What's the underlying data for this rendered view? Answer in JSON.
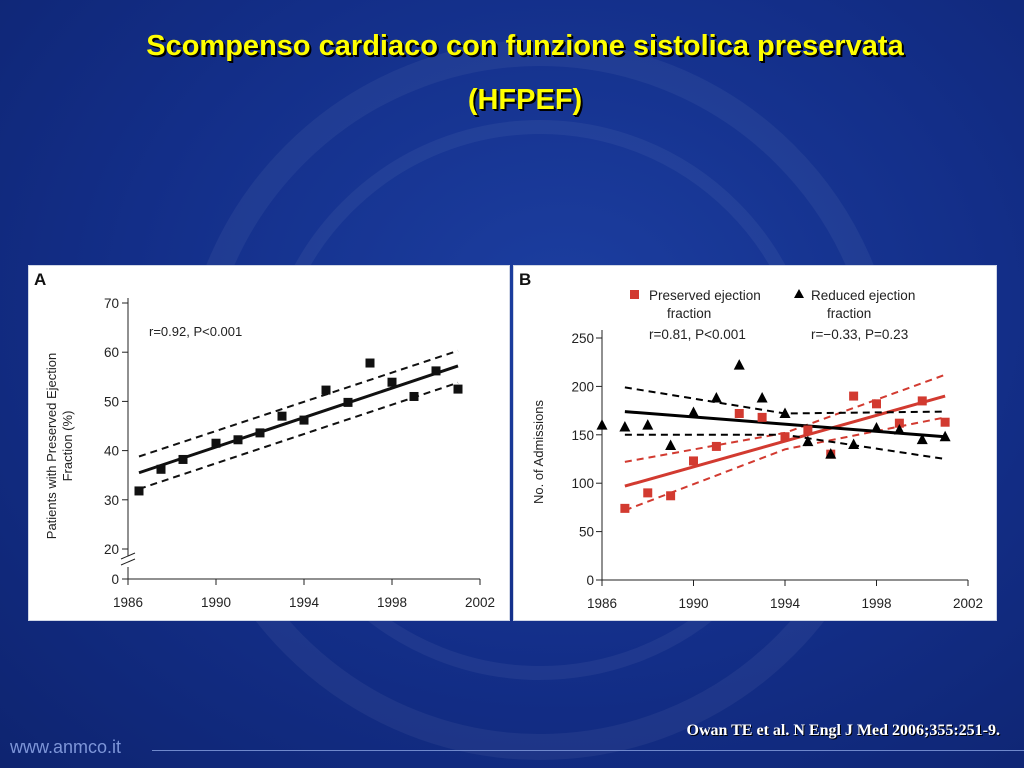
{
  "slide": {
    "title_line1": "Scompenso cardiaco con funzione sistolica preservata",
    "title_line2": "(HFPEF)",
    "citation": "Owan TE et al. N Engl J Med 2006;355:251-9.",
    "footer": "www.anmco.it"
  },
  "chart_data": [
    {
      "panel": "A",
      "type": "scatter",
      "ylabel_line1": "Patients with Preserved Ejection",
      "ylabel_line2": "Fraction (%)",
      "xlabel": "",
      "xlim": [
        1986,
        2002
      ],
      "x_ticks": [
        1986,
        1990,
        1994,
        1998,
        2002
      ],
      "y_ticks": [
        0,
        20,
        30,
        40,
        50,
        60,
        70
      ],
      "y_break": true,
      "annotation": "r=0.92, P<0.001",
      "points": [
        {
          "x": 1986.5,
          "y": 31.8
        },
        {
          "x": 1987.5,
          "y": 36.2
        },
        {
          "x": 1988.5,
          "y": 38.2
        },
        {
          "x": 1990.0,
          "y": 41.5
        },
        {
          "x": 1991.0,
          "y": 42.2
        },
        {
          "x": 1992.0,
          "y": 43.6
        },
        {
          "x": 1993.0,
          "y": 47.0
        },
        {
          "x": 1994.0,
          "y": 46.2
        },
        {
          "x": 1995.0,
          "y": 52.3
        },
        {
          "x": 1996.0,
          "y": 49.8
        },
        {
          "x": 1997.0,
          "y": 57.8
        },
        {
          "x": 1998.0,
          "y": 53.9
        },
        {
          "x": 1999.0,
          "y": 51.0
        },
        {
          "x": 2000.0,
          "y": 56.2
        },
        {
          "x": 2001.0,
          "y": 52.5
        }
      ],
      "fit": {
        "x": [
          1986.5,
          2001.0
        ],
        "y": [
          35.5,
          57.2
        ]
      },
      "ci_upper": {
        "x": [
          1986.5,
          2001.0
        ],
        "y": [
          38.8,
          60.3
        ]
      },
      "ci_lower": {
        "x": [
          1986.5,
          2001.0
        ],
        "y": [
          32.2,
          53.8
        ]
      }
    },
    {
      "panel": "B",
      "type": "scatter",
      "ylabel": "No. of Admissions",
      "xlabel": "",
      "xlim": [
        1986,
        2002
      ],
      "ylim": [
        0,
        250
      ],
      "x_ticks": [
        1986,
        1990,
        1994,
        1998,
        2002
      ],
      "y_ticks": [
        0,
        50,
        100,
        150,
        200,
        250
      ],
      "series": [
        {
          "name_line1": "Preserved ejection",
          "name_line2": "fraction",
          "stats": "r=0.81, P<0.001",
          "marker": "square",
          "color": "#d23a30",
          "points": [
            {
              "x": 1987,
              "y": 74
            },
            {
              "x": 1988,
              "y": 90
            },
            {
              "x": 1989,
              "y": 87
            },
            {
              "x": 1990,
              "y": 123
            },
            {
              "x": 1991,
              "y": 138
            },
            {
              "x": 1992,
              "y": 172
            },
            {
              "x": 1993,
              "y": 168
            },
            {
              "x": 1994,
              "y": 148
            },
            {
              "x": 1995,
              "y": 155
            },
            {
              "x": 1996,
              "y": 130
            },
            {
              "x": 1997,
              "y": 190
            },
            {
              "x": 1998,
              "y": 182
            },
            {
              "x": 1999,
              "y": 162
            },
            {
              "x": 2000,
              "y": 185
            },
            {
              "x": 2001,
              "y": 163
            }
          ],
          "fit": {
            "x": [
              1987,
              2001
            ],
            "y": [
              97,
              190
            ]
          },
          "ci_upper": {
            "x": [
              1987,
              1994,
              2001
            ],
            "y": [
              122,
              152,
              212
            ]
          },
          "ci_lower": {
            "x": [
              1987,
              1994,
              2001
            ],
            "y": [
              72,
              135,
              168
            ]
          }
        },
        {
          "name_line1": "Reduced ejection",
          "name_line2": "fraction",
          "stats": "r=−0.33, P=0.23",
          "marker": "triangle",
          "color": "#000000",
          "points": [
            {
              "x": 1986,
              "y": 160
            },
            {
              "x": 1987,
              "y": 158
            },
            {
              "x": 1988,
              "y": 160
            },
            {
              "x": 1989,
              "y": 139
            },
            {
              "x": 1990,
              "y": 173
            },
            {
              "x": 1991,
              "y": 188
            },
            {
              "x": 1992,
              "y": 222
            },
            {
              "x": 1993,
              "y": 188
            },
            {
              "x": 1994,
              "y": 172
            },
            {
              "x": 1995,
              "y": 143
            },
            {
              "x": 1996,
              "y": 130
            },
            {
              "x": 1997,
              "y": 140
            },
            {
              "x": 1998,
              "y": 157
            },
            {
              "x": 1999,
              "y": 155
            },
            {
              "x": 2000,
              "y": 145
            },
            {
              "x": 2001,
              "y": 148
            }
          ],
          "fit": {
            "x": [
              1987,
              2001
            ],
            "y": [
              174,
              148
            ]
          },
          "ci_upper": {
            "x": [
              1987,
              1994,
              2001
            ],
            "y": [
              199,
              172,
              174
            ]
          },
          "ci_lower": {
            "x": [
              1987,
              1994,
              2001
            ],
            "y": [
              150,
              150,
              125
            ]
          }
        }
      ]
    }
  ]
}
